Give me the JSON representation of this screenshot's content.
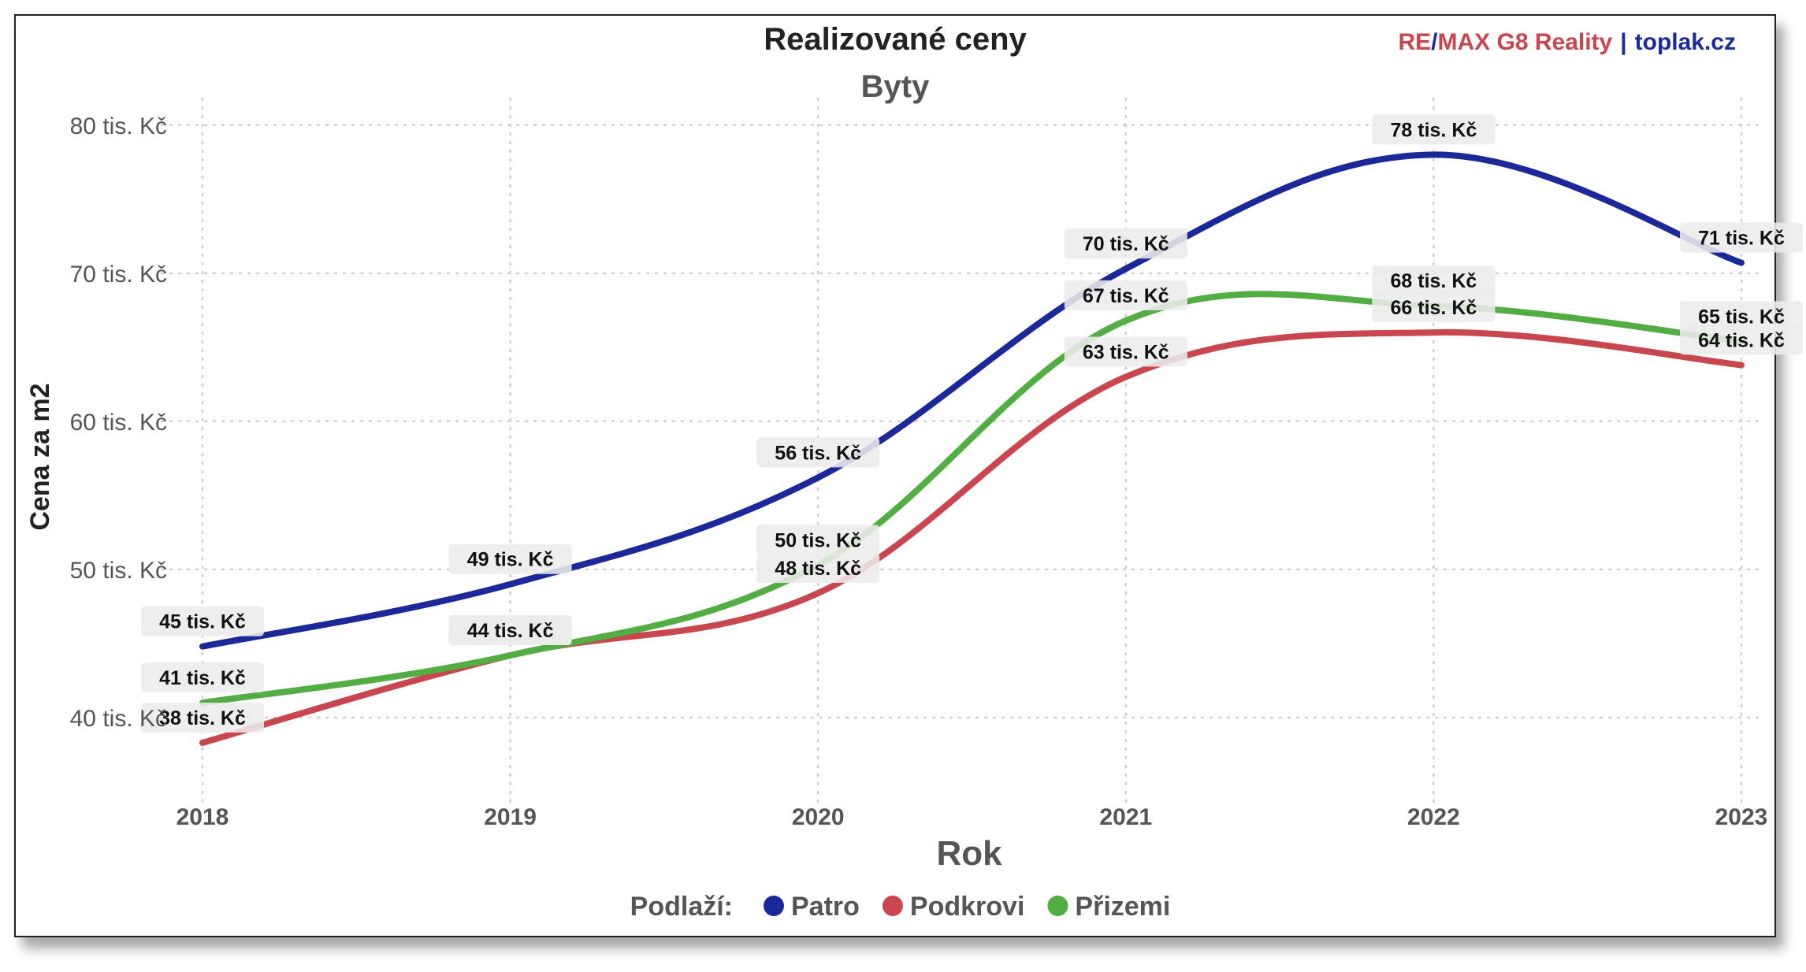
{
  "brand": {
    "re": "RE",
    "slash": "/",
    "rest": "MAX G8 Reality",
    "sep": "|",
    "site": "toplak.cz"
  },
  "colors": {
    "brand_red": "#c8464f",
    "brand_blue": "#1a2d96"
  },
  "chart_data": {
    "type": "line",
    "title": "Realizované ceny",
    "subtitle": "Byty",
    "xlabel": "Rok",
    "ylabel": "Cena za m2",
    "x": [
      2018,
      2019,
      2020,
      2021,
      2022,
      2023
    ],
    "x_tick_labels": [
      "2018",
      "2019",
      "2020",
      "2021",
      "2022",
      "2023"
    ],
    "y_ticks": [
      40,
      50,
      60,
      70,
      80
    ],
    "y_tick_labels": [
      "40 tis. Kč",
      "50 tis. Kč",
      "60 tis. Kč",
      "70 tis. Kč",
      "80 tis. Kč"
    ],
    "ylim": [
      35,
      81
    ],
    "xlim": [
      2018,
      2023
    ],
    "grid": true,
    "legend_title": "Podlaží:",
    "legend_position": "bottom",
    "series": [
      {
        "name": "Patro",
        "color": "#1a2899",
        "values": [
          44.8,
          49.0,
          56.2,
          70.3,
          78.0,
          70.7
        ],
        "labels": [
          "45 tis. Kč",
          "49 tis. Kč",
          "56 tis. Kč",
          "70 tis. Kč",
          "78 tis. Kč",
          "71 tis. Kč"
        ]
      },
      {
        "name": "Podkrovi",
        "color": "#c9464f",
        "values": [
          38.3,
          44.2,
          48.4,
          63.0,
          66.0,
          63.8
        ],
        "labels": [
          "38 tis. Kč",
          "44 tis. Kč",
          "48 tis. Kč",
          "63 tis. Kč",
          "66 tis. Kč",
          "64 tis. Kč"
        ]
      },
      {
        "name": "Přizemi",
        "color": "#52ad42",
        "values": [
          41.0,
          44.2,
          50.3,
          66.8,
          67.8,
          65.4
        ],
        "labels": [
          "41 tis. Kč",
          "44 tis. Kč",
          "50 tis. Kč",
          "67 tis. Kč",
          "68 tis. Kč",
          "65 tis. Kč"
        ]
      }
    ]
  }
}
